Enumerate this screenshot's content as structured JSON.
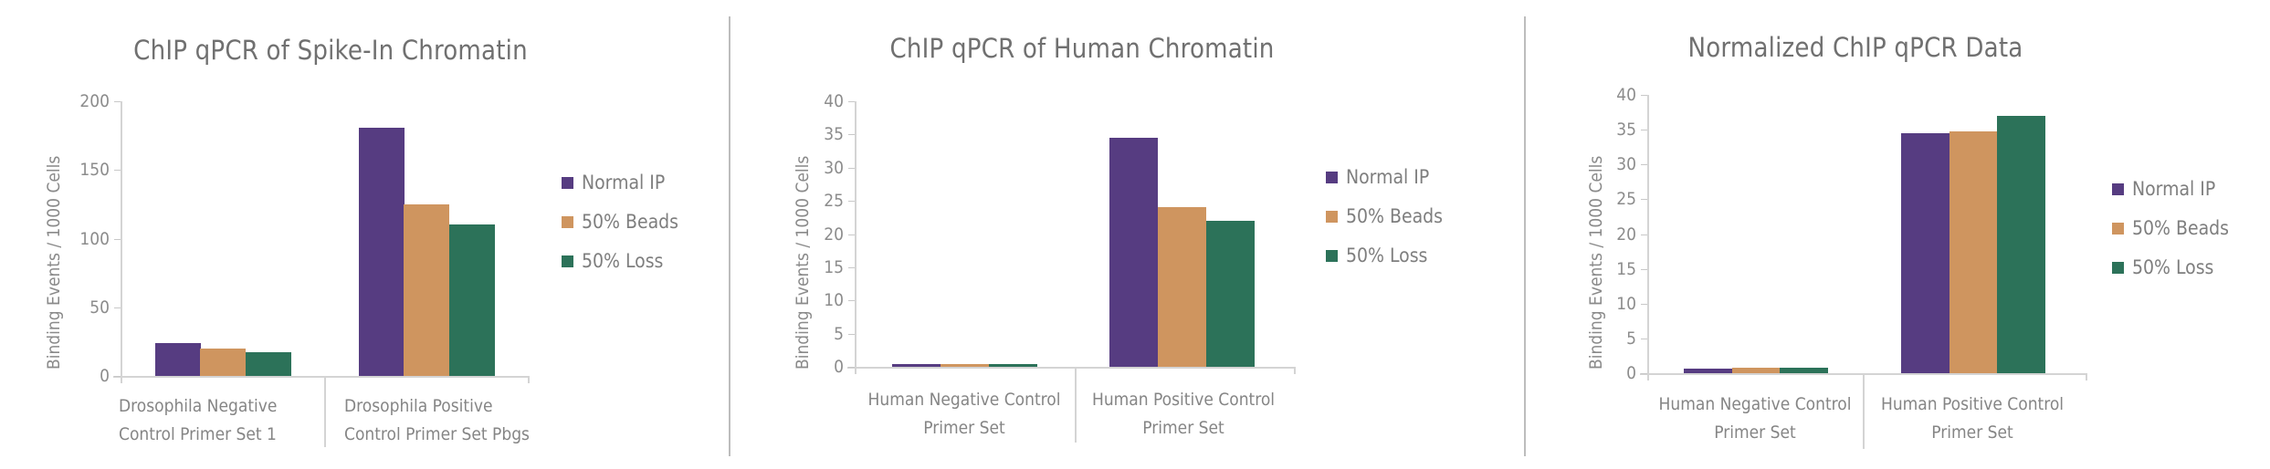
{
  "colors": {
    "normal_ip": "#563c81",
    "beads": "#cf955f",
    "loss": "#2c7259",
    "axis": "#d4d4d4",
    "text": "#707070"
  },
  "chart_data": [
    {
      "type": "bar",
      "title": "ChIP qPCR of Spike-In Chromatin",
      "xlabel": "",
      "ylabel": "Binding Events / 1000 Cells",
      "ylim": [
        0,
        200
      ],
      "yticks": [
        0,
        50,
        100,
        150,
        200
      ],
      "ytick_labels": [
        "0",
        "50",
        "100",
        "150",
        "200"
      ],
      "grid": false,
      "legend_position": "right",
      "categories": [
        "Drosophila Negative Control Primer Set 1",
        "Drosophila Positive Control Primer Set Pbgs"
      ],
      "category_label_lines": [
        [
          "Drosophila Negative",
          "Control Primer Set 1"
        ],
        [
          "Drosophila Positive",
          "Control Primer Set Pbgs"
        ]
      ],
      "series": [
        {
          "name": "Normal IP",
          "color": "#563c81",
          "values": [
            24,
            181
          ]
        },
        {
          "name": "50% Beads",
          "color": "#cf955f",
          "values": [
            20,
            125
          ]
        },
        {
          "name": "50% Loss",
          "color": "#2c7259",
          "values": [
            17,
            110
          ]
        }
      ]
    },
    {
      "type": "bar",
      "title": "ChIP qPCR of Human Chromatin",
      "xlabel": "",
      "ylabel": "Binding Events / 1000 Cells",
      "ylim": [
        0,
        40
      ],
      "yticks": [
        0,
        5,
        10,
        15,
        20,
        25,
        30,
        35,
        40
      ],
      "ytick_labels": [
        "0",
        "5",
        "10",
        "15",
        "20",
        "25",
        "30",
        "35",
        "40"
      ],
      "grid": false,
      "legend_position": "right",
      "categories": [
        "Human Negative Control Primer Set",
        "Human Positive Control Primer Set"
      ],
      "category_label_lines": [
        [
          "Human Negative Control",
          "Primer Set"
        ],
        [
          "Human Positive Control",
          "Primer Set"
        ]
      ],
      "series": [
        {
          "name": "Normal IP",
          "color": "#563c81",
          "values": [
            0.4,
            34.5
          ]
        },
        {
          "name": "50% Beads",
          "color": "#cf955f",
          "values": [
            0.4,
            24
          ]
        },
        {
          "name": "50% Loss",
          "color": "#2c7259",
          "values": [
            0.4,
            22
          ]
        }
      ]
    },
    {
      "type": "bar",
      "title": "Normalized ChIP qPCR Data",
      "xlabel": "",
      "ylabel": "Binding Events / 1000 Cells",
      "ylim": [
        0,
        40
      ],
      "yticks": [
        0,
        5,
        10,
        15,
        20,
        25,
        30,
        35,
        40
      ],
      "ytick_labels": [
        "0",
        "5",
        "10",
        "15",
        "20",
        "25",
        "30",
        "35",
        "40"
      ],
      "grid": false,
      "legend_position": "right",
      "categories": [
        "Human Negative Control Primer Set",
        "Human Positive Control Primer Set"
      ],
      "category_label_lines": [
        [
          "Human Negative Control",
          "Primer Set"
        ],
        [
          "Human Positive Control",
          "Primer Set"
        ]
      ],
      "series": [
        {
          "name": "Normal IP",
          "color": "#563c81",
          "values": [
            0.6,
            34.5
          ]
        },
        {
          "name": "50% Beads",
          "color": "#cf955f",
          "values": [
            0.8,
            34.8
          ]
        },
        {
          "name": "50% Loss",
          "color": "#2c7259",
          "values": [
            0.8,
            37
          ]
        }
      ]
    }
  ]
}
